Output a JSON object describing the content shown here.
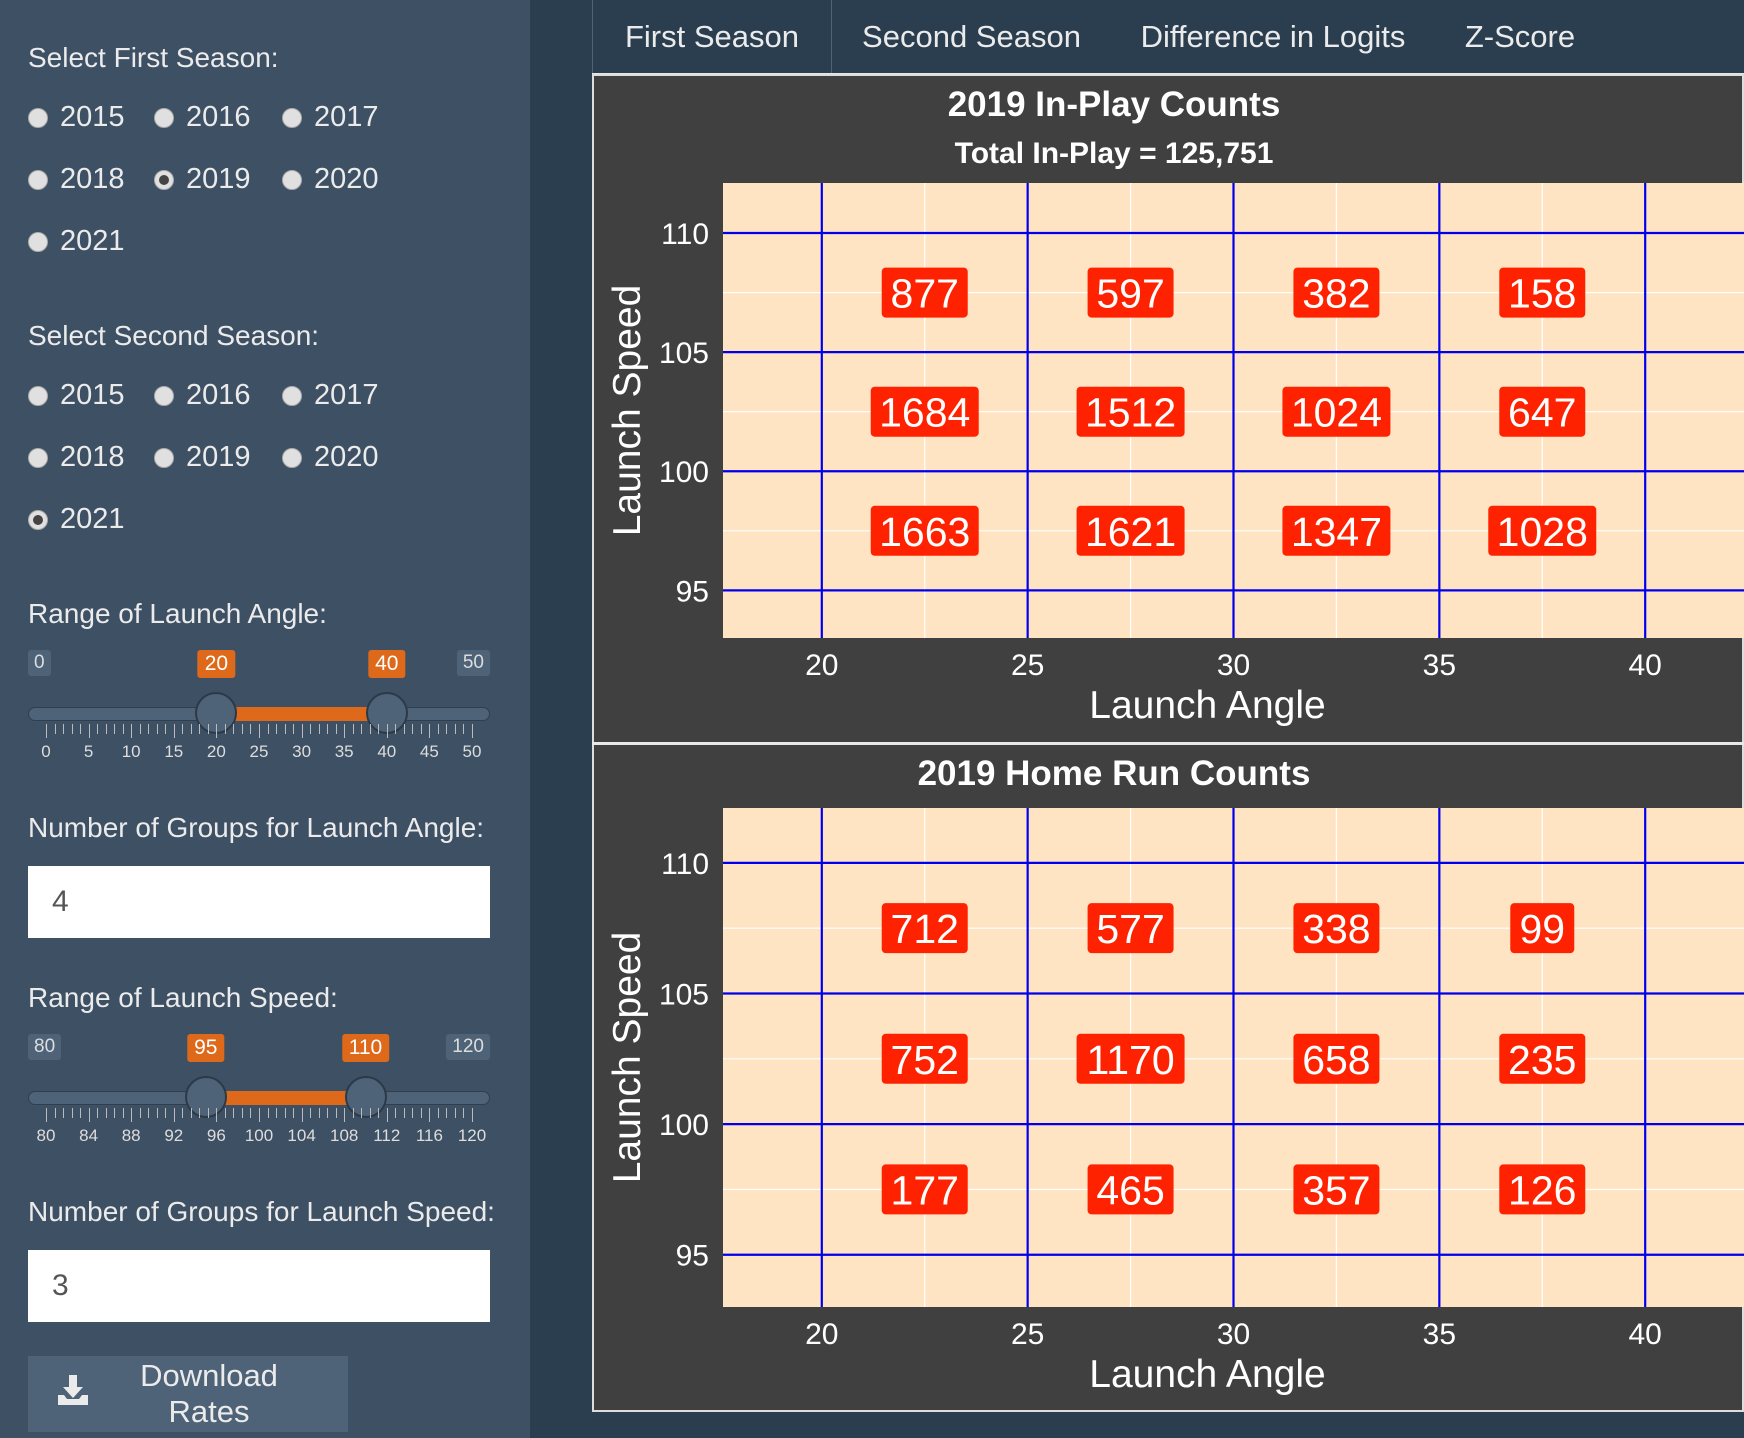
{
  "sidebar": {
    "first_season": {
      "label": "Select First Season:",
      "options": [
        "2015",
        "2016",
        "2017",
        "2018",
        "2019",
        "2020",
        "2021"
      ],
      "selected": "2019"
    },
    "second_season": {
      "label": "Select Second Season:",
      "options": [
        "2015",
        "2016",
        "2017",
        "2018",
        "2019",
        "2020",
        "2021"
      ],
      "selected": "2021"
    },
    "angle_range": {
      "label": "Range of Launch Angle:",
      "min": 0,
      "max": 50,
      "from": 20,
      "to": 40,
      "min_label": "0",
      "max_label": "50",
      "from_label": "20",
      "to_label": "40",
      "tick_labels": [
        "0",
        "5",
        "10",
        "15",
        "20",
        "25",
        "30",
        "35",
        "40",
        "45",
        "50"
      ]
    },
    "angle_groups": {
      "label": "Number of Groups for Launch Angle:",
      "value": "4"
    },
    "speed_range": {
      "label": "Range of Launch Speed:",
      "min": 80,
      "max": 120,
      "from": 95,
      "to": 110,
      "min_label": "80",
      "max_label": "120",
      "from_label": "95",
      "to_label": "110",
      "tick_labels": [
        "80",
        "84",
        "88",
        "92",
        "96",
        "100",
        "104",
        "108",
        "112",
        "116",
        "120"
      ]
    },
    "speed_groups": {
      "label": "Number of Groups for Launch Speed:",
      "value": "3"
    },
    "download_label": "Download Rates",
    "download_icon": "download-icon"
  },
  "tabs": [
    {
      "label": "First Season",
      "active": true
    },
    {
      "label": "Second Season",
      "active": false
    },
    {
      "label": "Difference in Logits",
      "active": false
    },
    {
      "label": "Z-Score",
      "active": false
    }
  ],
  "colors": {
    "panel": "#ffe4c4",
    "grid_line": "#0000ee",
    "label_fill": "#ff2200",
    "accent": "#df691a"
  },
  "chart_data": [
    {
      "type": "heatmap",
      "title": "2019 In-Play Counts",
      "subtitle": "Total In-Play = 125,751",
      "xlabel": "Launch Angle",
      "ylabel": "Launch Speed",
      "xlim": [
        17.6,
        42.4
      ],
      "ylim": [
        93,
        112.1
      ],
      "x_ticks": [
        20,
        25,
        30,
        35,
        40
      ],
      "y_ticks": [
        95,
        100,
        105,
        110
      ],
      "x_breaks": [
        20,
        25,
        30,
        35,
        40
      ],
      "y_breaks": [
        95,
        100,
        105,
        110
      ],
      "x_centers": [
        22.5,
        27.5,
        32.5,
        37.5
      ],
      "y_centers": [
        107.5,
        102.5,
        97.5
      ],
      "values": [
        [
          877,
          597,
          382,
          158
        ],
        [
          1684,
          1512,
          1024,
          647
        ],
        [
          1663,
          1621,
          1347,
          1028
        ]
      ]
    },
    {
      "type": "heatmap",
      "title": "2019 Home Run Counts",
      "subtitle": "",
      "xlabel": "Launch Angle",
      "ylabel": "Launch Speed",
      "xlim": [
        17.6,
        42.4
      ],
      "ylim": [
        93,
        112.1
      ],
      "x_ticks": [
        20,
        25,
        30,
        35,
        40
      ],
      "y_ticks": [
        95,
        100,
        105,
        110
      ],
      "x_breaks": [
        20,
        25,
        30,
        35,
        40
      ],
      "y_breaks": [
        95,
        100,
        105,
        110
      ],
      "x_centers": [
        22.5,
        27.5,
        32.5,
        37.5
      ],
      "y_centers": [
        107.5,
        102.5,
        97.5
      ],
      "values": [
        [
          712,
          577,
          338,
          99
        ],
        [
          752,
          1170,
          658,
          235
        ],
        [
          177,
          465,
          357,
          126
        ]
      ]
    }
  ]
}
